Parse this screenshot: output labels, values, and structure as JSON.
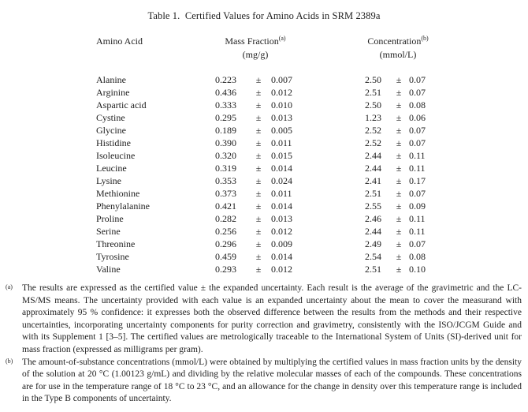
{
  "title": "Table 1.  Certified Values for Amino Acids in SRM 2389a",
  "table": {
    "col_amino": "Amino Acid",
    "col_mass": "Mass Fraction",
    "col_mass_sup": "(a)",
    "col_mass_unit": "(mg/g)",
    "col_conc": "Concentration",
    "col_conc_sup": "(b)",
    "col_conc_unit": "(mmol/L)",
    "pm": "±",
    "rows": [
      {
        "name": "Alanine",
        "mass": "0.223",
        "mass_u": "0.007",
        "conc": "2.50",
        "conc_u": "0.07"
      },
      {
        "name": "Arginine",
        "mass": "0.436",
        "mass_u": "0.012",
        "conc": "2.51",
        "conc_u": "0.07"
      },
      {
        "name": "Aspartic acid",
        "mass": "0.333",
        "mass_u": "0.010",
        "conc": "2.50",
        "conc_u": "0.08"
      },
      {
        "name": "Cystine",
        "mass": "0.295",
        "mass_u": "0.013",
        "conc": "1.23",
        "conc_u": "0.06"
      },
      {
        "name": "Glycine",
        "mass": "0.189",
        "mass_u": "0.005",
        "conc": "2.52",
        "conc_u": "0.07"
      },
      {
        "name": "Histidine",
        "mass": "0.390",
        "mass_u": "0.011",
        "conc": "2.52",
        "conc_u": "0.07"
      },
      {
        "name": "Isoleucine",
        "mass": "0.320",
        "mass_u": "0.015",
        "conc": "2.44",
        "conc_u": "0.11"
      },
      {
        "name": "Leucine",
        "mass": "0.319",
        "mass_u": "0.014",
        "conc": "2.44",
        "conc_u": "0.11"
      },
      {
        "name": "Lysine",
        "mass": "0.353",
        "mass_u": "0.024",
        "conc": "2.41",
        "conc_u": "0.17"
      },
      {
        "name": "Methionine",
        "mass": "0.373",
        "mass_u": "0.011",
        "conc": "2.51",
        "conc_u": "0.07"
      },
      {
        "name": "Phenylalanine",
        "mass": "0.421",
        "mass_u": "0.014",
        "conc": "2.55",
        "conc_u": "0.09"
      },
      {
        "name": "Proline",
        "mass": "0.282",
        "mass_u": "0.013",
        "conc": "2.46",
        "conc_u": "0.11"
      },
      {
        "name": "Serine",
        "mass": "0.256",
        "mass_u": "0.012",
        "conc": "2.44",
        "conc_u": "0.11"
      },
      {
        "name": "Threonine",
        "mass": "0.296",
        "mass_u": "0.009",
        "conc": "2.49",
        "conc_u": "0.07"
      },
      {
        "name": "Tyrosine",
        "mass": "0.459",
        "mass_u": "0.014",
        "conc": "2.54",
        "conc_u": "0.08"
      },
      {
        "name": "Valine",
        "mass": "0.293",
        "mass_u": "0.012",
        "conc": "2.51",
        "conc_u": "0.10"
      }
    ]
  },
  "footnotes": [
    {
      "marker": "(a)",
      "text": "The results are expressed as the certified value ± the expanded uncertainty.  Each result is the average of the gravimetric and the LC-MS/MS means.  The uncertainty provided with each value is an expanded uncertainty about the mean to cover the measurand with approximately 95 % confidence:  it expresses both the observed difference between the results from the methods and their respective uncertainties, incorporating uncertainty components for purity correction and gravimetry, consistently with the ISO/JCGM Guide and with its Supplement 1 [3–5].  The certified values are metrologically traceable to the International System of Units (SI)-derived unit for mass fraction (expressed as milligrams per gram)."
    },
    {
      "marker": "(b)",
      "text": "The amount-of-substance concentrations (mmol/L) were obtained by multiplying the certified values in mass fraction units by the density of the solution at 20 °C (1.00123 g/mL) and dividing by the relative molecular masses of each of the compounds.  These concentrations are for use in the temperature range of 18 °C to 23 °C, and an allowance for the change in density over this temperature range is included in the Type B components of uncertainty."
    }
  ]
}
